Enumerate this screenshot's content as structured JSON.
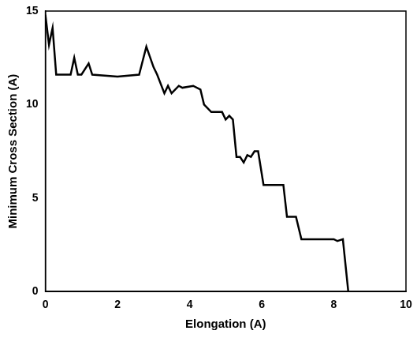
{
  "chart_data": {
    "type": "line",
    "xlabel": "Elongation (A)",
    "ylabel": "Minimum Cross Section (A)",
    "x": [
      0,
      0.1,
      0.2,
      0.3,
      0.7,
      0.8,
      0.9,
      1.0,
      1.2,
      1.3,
      2.0,
      2.6,
      2.8,
      3.0,
      3.1,
      3.3,
      3.4,
      3.5,
      3.7,
      3.8,
      4.1,
      4.3,
      4.4,
      4.6,
      4.9,
      5.0,
      5.1,
      5.2,
      5.3,
      5.4,
      5.5,
      5.6,
      5.7,
      5.8,
      5.9,
      6.05,
      6.6,
      6.7,
      6.95,
      7.1,
      8.0,
      8.1,
      8.25,
      8.4,
      10
    ],
    "values": [
      14.8,
      13.2,
      14.1,
      11.6,
      11.6,
      12.5,
      11.6,
      11.6,
      12.2,
      11.6,
      11.5,
      11.6,
      13.1,
      12.0,
      11.6,
      10.6,
      11.0,
      10.6,
      11.0,
      10.9,
      11.0,
      10.8,
      10.0,
      9.6,
      9.6,
      9.2,
      9.4,
      9.2,
      7.2,
      7.2,
      6.9,
      7.3,
      7.2,
      7.5,
      7.5,
      5.7,
      5.7,
      4.0,
      4.0,
      2.8,
      2.8,
      2.7,
      2.8,
      0,
      0
    ],
    "color": "#000000",
    "xlim": [
      0,
      10
    ],
    "xticks": [
      0,
      2,
      4,
      6,
      8,
      10
    ],
    "ylim": [
      0,
      15
    ],
    "yticks": [
      0,
      5,
      10,
      15
    ],
    "grid": false
  }
}
